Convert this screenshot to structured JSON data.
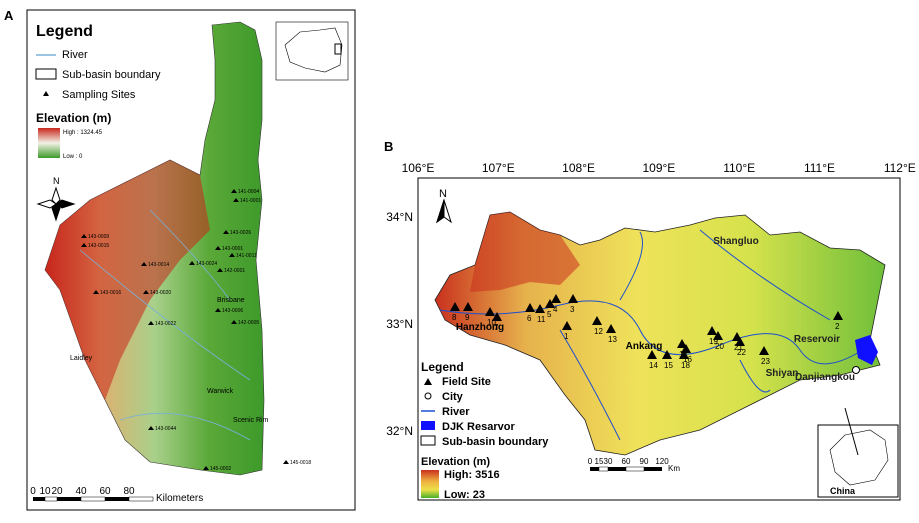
{
  "panel_a": {
    "label": "A",
    "legend_title": "Legend",
    "legend_items": [
      "River",
      "Sub-basin boundary",
      "Sampling Sites"
    ],
    "elevation_title": "Elevation (m)",
    "elevation_high": "High : 1324.45",
    "elevation_low": "Low : 0",
    "north": "N",
    "scale_labels": [
      "0",
      "10",
      "20",
      "40",
      "60",
      "80"
    ],
    "scale_unit": "Kilometers",
    "places": [
      "Brisbane",
      "Laidley",
      "Warwick",
      "Scenic Rim"
    ],
    "sites": [
      "143-0009",
      "143-0015",
      "143-0014",
      "143-0024",
      "143-0001",
      "141-0001",
      "141-0011",
      "142-0001",
      "143-0016",
      "143-0020",
      "143-0022",
      "142-0005",
      "143-0006",
      "143-0044",
      "145-0002",
      "145-0018",
      "141-0004",
      "143-0026"
    ]
  },
  "panel_b": {
    "label": "B",
    "longitudes": [
      "106°E",
      "107°E",
      "108°E",
      "109°E",
      "110°E",
      "111°E",
      "112°E"
    ],
    "latitudes": [
      "34°N",
      "33°N",
      "32°N"
    ],
    "north": "N",
    "cities": [
      "Hanzhong",
      "Ankang",
      "Shiyan",
      "Shangluo",
      "Reservoir",
      "Danjiangkou"
    ],
    "sites": [
      "1",
      "2",
      "3",
      "4",
      "5",
      "6",
      "7",
      "8",
      "9",
      "10",
      "11",
      "12",
      "13",
      "14",
      "15",
      "16",
      "17",
      "18",
      "19",
      "20",
      "21",
      "22",
      "23"
    ],
    "legend_title": "Legend",
    "legend_items": [
      "Field Site",
      "City",
      "River",
      "DJK Resarvor",
      "Sub-basin boundary"
    ],
    "elevation_title": "Elevation (m)",
    "elevation_high": "High: 3516",
    "elevation_low": "Low: 23",
    "scale_labels": [
      "0",
      "15",
      "30",
      "60",
      "90",
      "120"
    ],
    "scale_unit": "Km",
    "inset_label": "China"
  }
}
